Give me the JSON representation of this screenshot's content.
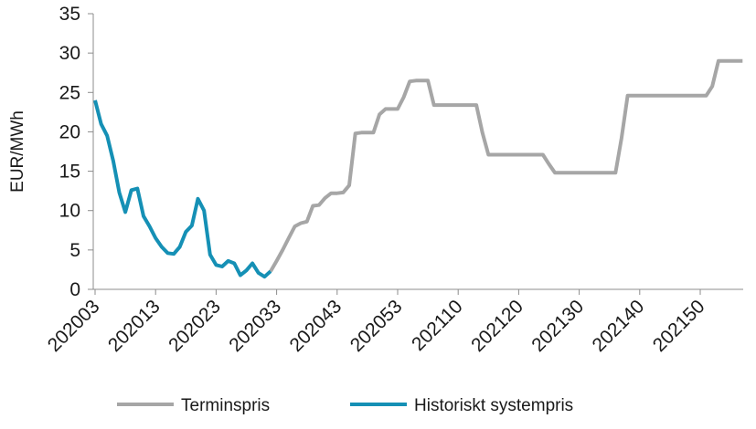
{
  "chart_data": {
    "type": "line",
    "title": "",
    "xlabel": "",
    "ylabel": "EUR/MWh",
    "ylim": [
      0,
      35
    ],
    "yticks": [
      0,
      5,
      10,
      15,
      20,
      25,
      30,
      35
    ],
    "grid": false,
    "legend_position": "bottom",
    "x_tick_labels": [
      "202003",
      "202013",
      "202023",
      "202033",
      "202043",
      "202053",
      "202110",
      "202120",
      "202130",
      "202140",
      "202150"
    ],
    "series": [
      {
        "name": "Terminspris",
        "color": "#a6a6a6",
        "points": [
          [
            29,
            2.3
          ],
          [
            30,
            3.6
          ],
          [
            31,
            5.0
          ],
          [
            32,
            6.5
          ],
          [
            33,
            8.0
          ],
          [
            34,
            8.4
          ],
          [
            35,
            8.6
          ],
          [
            36,
            10.6
          ],
          [
            37,
            10.7
          ],
          [
            38,
            11.6
          ],
          [
            39,
            12.2
          ],
          [
            40,
            12.2
          ],
          [
            41,
            12.3
          ],
          [
            42,
            13.2
          ],
          [
            43,
            19.8
          ],
          [
            44,
            19.9
          ],
          [
            45,
            19.9
          ],
          [
            46,
            19.9
          ],
          [
            47,
            22.2
          ],
          [
            48,
            22.9
          ],
          [
            49,
            22.9
          ],
          [
            50,
            22.9
          ],
          [
            51,
            24.4
          ],
          [
            52,
            26.4
          ],
          [
            53,
            26.5
          ],
          [
            54,
            26.5
          ],
          [
            55,
            26.5
          ],
          [
            56,
            23.4
          ],
          [
            57,
            23.4
          ],
          [
            58,
            23.4
          ],
          [
            59,
            23.4
          ],
          [
            60,
            23.4
          ],
          [
            61,
            23.4
          ],
          [
            62,
            23.4
          ],
          [
            63,
            23.4
          ],
          [
            64,
            19.9
          ],
          [
            65,
            17.1
          ],
          [
            66,
            17.1
          ],
          [
            67,
            17.1
          ],
          [
            68,
            17.1
          ],
          [
            69,
            17.1
          ],
          [
            70,
            17.1
          ],
          [
            71,
            17.1
          ],
          [
            72,
            17.1
          ],
          [
            73,
            17.1
          ],
          [
            74,
            17.1
          ],
          [
            75,
            15.9
          ],
          [
            76,
            14.8
          ],
          [
            77,
            14.8
          ],
          [
            78,
            14.8
          ],
          [
            79,
            14.8
          ],
          [
            80,
            14.8
          ],
          [
            81,
            14.8
          ],
          [
            82,
            14.8
          ],
          [
            83,
            14.8
          ],
          [
            84,
            14.8
          ],
          [
            85,
            14.8
          ],
          [
            86,
            14.8
          ],
          [
            87,
            19.2
          ],
          [
            88,
            24.6
          ],
          [
            89,
            24.6
          ],
          [
            90,
            24.6
          ],
          [
            91,
            24.6
          ],
          [
            92,
            24.6
          ],
          [
            93,
            24.6
          ],
          [
            94,
            24.6
          ],
          [
            95,
            24.6
          ],
          [
            96,
            24.6
          ],
          [
            97,
            24.6
          ],
          [
            98,
            24.6
          ],
          [
            99,
            24.6
          ],
          [
            100,
            24.6
          ],
          [
            101,
            24.6
          ],
          [
            102,
            25.8
          ],
          [
            103,
            29.0
          ],
          [
            104,
            29.0
          ],
          [
            105,
            29.0
          ],
          [
            106,
            29.0
          ],
          [
            107,
            29.0
          ]
        ]
      },
      {
        "name": "Historiskt systempris",
        "color": "#1590b5",
        "points": [
          [
            0,
            24.0
          ],
          [
            1,
            21.0
          ],
          [
            2,
            19.5
          ],
          [
            3,
            16.3
          ],
          [
            4,
            12.3
          ],
          [
            5,
            9.8
          ],
          [
            6,
            12.6
          ],
          [
            7,
            12.8
          ],
          [
            8,
            9.3
          ],
          [
            9,
            8.0
          ],
          [
            10,
            6.5
          ],
          [
            11,
            5.4
          ],
          [
            12,
            4.6
          ],
          [
            13,
            4.5
          ],
          [
            14,
            5.4
          ],
          [
            15,
            7.3
          ],
          [
            16,
            8.1
          ],
          [
            17,
            11.5
          ],
          [
            18,
            10.0
          ],
          [
            19,
            4.4
          ],
          [
            20,
            3.1
          ],
          [
            21,
            2.9
          ],
          [
            22,
            3.6
          ],
          [
            23,
            3.3
          ],
          [
            24,
            1.8
          ],
          [
            25,
            2.4
          ],
          [
            26,
            3.3
          ],
          [
            27,
            2.1
          ],
          [
            28,
            1.6
          ],
          [
            29,
            2.3
          ]
        ]
      }
    ]
  }
}
